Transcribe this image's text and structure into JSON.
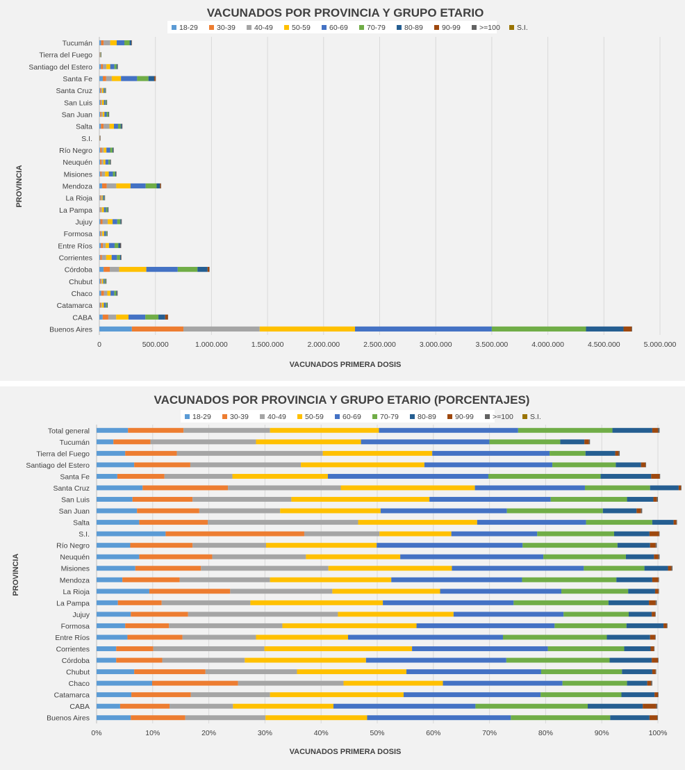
{
  "colors": [
    "#5b9bd5",
    "#ed7d31",
    "#a5a5a5",
    "#ffc000",
    "#4472c4",
    "#70ad47",
    "#255e91",
    "#9e480e",
    "#636363",
    "#997300"
  ],
  "chart_data": [
    {
      "type": "bar",
      "orientation": "horizontal",
      "stacked": true,
      "title": "VACUNADOS POR PROVINCIA Y GRUPO ETARIO",
      "xlabel": "VACUNADOS PRIMERA  DOSIS",
      "ylabel": "PROVINCIA",
      "xlim": [
        0,
        5000000
      ],
      "xticks": [
        "0",
        "500.000",
        "1.000.000",
        "1.500.000",
        "2.000.000",
        "2.500.000",
        "3.000.000",
        "3.500.000",
        "4.000.000",
        "4.500.000",
        "5.000.000"
      ],
      "legend_position": "top",
      "grid": true,
      "categories": [
        "Tucumán",
        "Tierra del Fuego",
        "Santiago del Estero",
        "Santa Fe",
        "Santa Cruz",
        "San Luis",
        "San Juan",
        "Salta",
        "S.I.",
        "Río Negro",
        "Neuquén",
        "Misiones",
        "Mendoza",
        "La Rioja",
        "La Pampa",
        "Jujuy",
        "Formosa",
        "Entre Ríos",
        "Corrientes",
        "Córdoba",
        "Chubut",
        "Chaco",
        "Catamarca",
        "CABA",
        "Buenos Aires"
      ],
      "series": [
        {
          "name": "18-29",
          "values": [
            15000,
            1500,
            14000,
            31000,
            6000,
            6500,
            7500,
            14000,
            850,
            8000,
            7000,
            8000,
            25000,
            5000,
            4500,
            9500,
            6000,
            13500,
            8000,
            38000,
            6500,
            16500,
            5000,
            30000,
            290000
          ]
        },
        {
          "name": "30-39",
          "values": [
            23000,
            2000,
            17000,
            30000,
            8000,
            6500,
            10000,
            24000,
            1750,
            14000,
            13000,
            13000,
            41000,
            7000,
            6000,
            18500,
            6000,
            18500,
            15000,
            55000,
            7500,
            24500,
            7500,
            50000,
            460000
          ]
        },
        {
          "name": "40-49",
          "values": [
            59000,
            4000,
            32000,
            50000,
            11000,
            11500,
            12500,
            52000,
            950,
            17000,
            16500,
            30000,
            85000,
            9000,
            12000,
            47000,
            14500,
            24000,
            38000,
            84000,
            9500,
            30000,
            10000,
            70000,
            680000
          ]
        },
        {
          "name": "50-59",
          "values": [
            58000,
            3000,
            34000,
            82000,
            12000,
            16000,
            15500,
            40000,
            900,
            24000,
            17500,
            33000,
            127000,
            9000,
            18000,
            43000,
            16000,
            30000,
            49000,
            242000,
            12000,
            28500,
            17500,
            110000,
            850000
          ]
        },
        {
          "name": "60-69",
          "values": [
            68000,
            3400,
            37000,
            144000,
            10500,
            14000,
            19500,
            37000,
            1250,
            33000,
            27000,
            37000,
            135000,
            10000,
            18500,
            42000,
            16000,
            50000,
            47000,
            280000,
            12000,
            33000,
            17500,
            150000,
            1220000
          ]
        },
        {
          "name": "70-79",
          "values": [
            47000,
            1100,
            19000,
            101000,
            6200,
            8300,
            15000,
            23000,
            1050,
            21000,
            14300,
            20000,
            98000,
            5000,
            13500,
            27500,
            8500,
            33000,
            27000,
            176000,
            8800,
            18000,
            10300,
            117000,
            840000
          ]
        },
        {
          "name": "80-89",
          "values": [
            16000,
            850,
            8000,
            52000,
            2700,
            3100,
            4200,
            11000,
            450,
            7500,
            5000,
            8000,
            30000,
            2500,
            5800,
            8400,
            3300,
            20000,
            9000,
            90000,
            3900,
            7700,
            3900,
            60000,
            335000
          ]
        },
        {
          "name": "90-99",
          "values": [
            3000,
            100,
            1500,
            11000,
            500,
            500,
            1000,
            2700,
            150,
            1300,
            900,
            1500,
            7500,
            450,
            1000,
            1500,
            500,
            3500,
            1500,
            16000,
            700,
            2300,
            700,
            24000,
            72000
          ]
        },
        {
          "name": ">=100",
          "values": [
            300,
            20,
            150,
            600,
            50,
            50,
            100,
            200,
            10,
            130,
            90,
            150,
            600,
            30,
            90,
            150,
            60,
            200,
            150,
            1000,
            60,
            150,
            60,
            2000,
            5000
          ]
        },
        {
          "name": "S.I.",
          "values": [
            0,
            0,
            0,
            0,
            0,
            0,
            0,
            0,
            0,
            0,
            0,
            0,
            0,
            0,
            0,
            0,
            0,
            0,
            0,
            0,
            0,
            0,
            0,
            0,
            0
          ]
        }
      ]
    },
    {
      "type": "bar",
      "orientation": "horizontal",
      "stacked": true,
      "percent": true,
      "title": "VACUNADOS POR PROVINCIA Y GRUPO ETARIO (PORCENTAJES)",
      "xlabel": "VACUNADOS PRIMERA  DOSIS",
      "ylabel": "PROVINCIA",
      "xlim": [
        0,
        100
      ],
      "xticks": [
        "0%",
        "10%",
        "20%",
        "30%",
        "40%",
        "50%",
        "60%",
        "70%",
        "80%",
        "90%",
        "100%"
      ],
      "legend_position": "top",
      "grid": true,
      "categories": [
        "Total general",
        "Tucumán",
        "Tierra del Fuego",
        "Santiago del Estero",
        "Santa Fe",
        "Santa Cruz",
        "San Luis",
        "San Juan",
        "Salta",
        "S.I.",
        "Río Negro",
        "Neuquén",
        "Misiones",
        "Mendoza",
        "La Rioja",
        "La Pampa",
        "Jujuy",
        "Formosa",
        "Entre Ríos",
        "Corrientes",
        "Córdoba",
        "Chubut",
        "Chaco",
        "Catamarca",
        "CABA",
        "Buenos Aires"
      ],
      "series": [
        {
          "name": "18-29",
          "values": [
            5.6,
            3.0,
            5.1,
            6.7,
            3.7,
            8.2,
            6.4,
            7.2,
            7.6,
            12.3,
            6.0,
            7.6,
            6.9,
            4.6,
            9.4,
            3.8,
            6.1,
            5.1,
            5.5,
            3.5,
            3.5,
            6.7,
            9.9,
            6.2,
            4.2,
            6.1
          ]
        },
        {
          "name": "30-39",
          "values": [
            9.9,
            6.6,
            9.2,
            10.0,
            8.4,
            15.2,
            10.7,
            11.1,
            12.2,
            24.7,
            11.1,
            13.0,
            11.7,
            10.2,
            14.4,
            7.8,
            10.2,
            7.8,
            9.8,
            6.6,
            8.2,
            12.7,
            15.3,
            10.6,
            8.8,
            9.7
          ]
        },
        {
          "name": "40-49",
          "values": [
            15.4,
            18.8,
            26.0,
            19.7,
            12.1,
            20.1,
            17.6,
            14.4,
            26.8,
            13.4,
            13.1,
            16.7,
            22.7,
            16.1,
            18.2,
            15.8,
            26.7,
            20.2,
            13.1,
            19.8,
            14.7,
            16.3,
            18.8,
            14.1,
            11.3,
            14.3
          ]
        },
        {
          "name": "50-59",
          "values": [
            19.4,
            18.7,
            19.5,
            22.0,
            17.0,
            23.9,
            24.6,
            17.9,
            21.2,
            12.8,
            19.7,
            16.8,
            22.0,
            21.6,
            19.2,
            23.6,
            20.6,
            23.9,
            16.4,
            26.3,
            21.6,
            19.5,
            17.7,
            23.8,
            17.9,
            18.1
          ]
        },
        {
          "name": "60-69",
          "values": [
            24.8,
            22.9,
            20.9,
            22.8,
            28.6,
            19.6,
            21.6,
            22.5,
            19.4,
            15.3,
            26.0,
            25.5,
            23.5,
            23.3,
            21.6,
            23.3,
            19.6,
            24.6,
            27.6,
            24.2,
            25.0,
            24.0,
            21.3,
            24.4,
            25.3,
            25.6
          ]
        },
        {
          "name": "70-79",
          "values": [
            16.8,
            12.6,
            6.4,
            11.3,
            20.0,
            11.6,
            13.6,
            17.1,
            11.8,
            13.7,
            16.9,
            14.7,
            10.8,
            16.8,
            11.9,
            16.9,
            11.6,
            12.8,
            18.5,
            13.6,
            18.4,
            14.4,
            11.5,
            14.4,
            20.0,
            17.7
          ]
        },
        {
          "name": "80-89",
          "values": [
            7.1,
            4.3,
            5.3,
            4.5,
            9.0,
            5.1,
            4.7,
            6.0,
            3.8,
            6.3,
            5.8,
            5.0,
            4.2,
            6.4,
            4.8,
            7.2,
            4.1,
            6.6,
            7.7,
            4.7,
            7.5,
            5.4,
            3.6,
            5.9,
            9.8,
            7.0
          ]
        },
        {
          "name": "90-99",
          "values": [
            1.0,
            0.8,
            0.6,
            0.8,
            1.5,
            0.4,
            0.6,
            0.8,
            0.5,
            1.7,
            1.0,
            0.8,
            0.6,
            1.1,
            0.6,
            1.2,
            0.6,
            0.6,
            0.9,
            0.6,
            1.1,
            0.6,
            0.7,
            0.6,
            2.4,
            1.4
          ]
        },
        {
          "name": ">=100",
          "values": [
            0.3,
            0.2,
            0.2,
            0.1,
            0.1,
            0.1,
            0.2,
            0.2,
            0.1,
            0.1,
            0.2,
            0.2,
            0.2,
            0.1,
            0.1,
            0.2,
            0.1,
            0.1,
            0.1,
            0.1,
            0.1,
            0.1,
            0.2,
            0.1,
            0.2,
            0.1
          ]
        },
        {
          "name": "S.I.",
          "values": [
            0,
            0,
            0,
            0,
            0,
            0,
            0,
            0,
            0,
            0,
            0,
            0,
            0,
            0,
            0,
            0,
            0,
            0,
            0,
            0,
            0,
            0,
            0,
            0,
            0,
            0
          ]
        }
      ]
    }
  ]
}
